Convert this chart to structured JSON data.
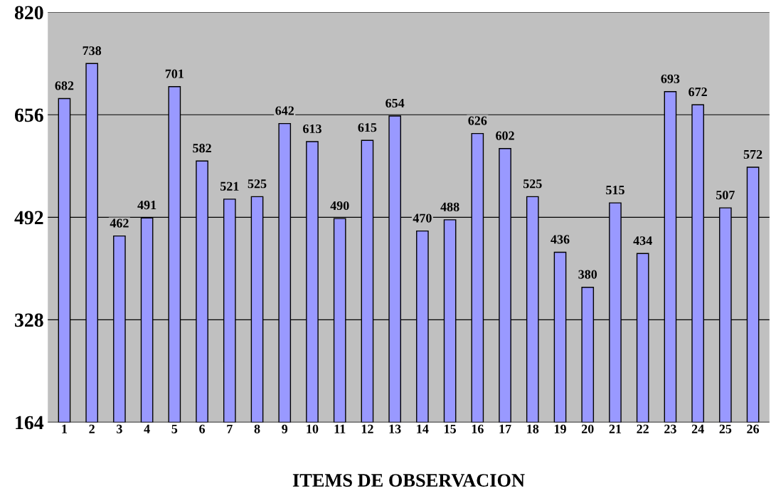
{
  "chart_data": {
    "type": "bar",
    "xlabel": "ITEMS DE OBSERVACION",
    "categories": [
      "1",
      "2",
      "3",
      "4",
      "5",
      "6",
      "7",
      "8",
      "9",
      "10",
      "11",
      "12",
      "13",
      "14",
      "15",
      "16",
      "17",
      "18",
      "19",
      "20",
      "21",
      "22",
      "23",
      "24",
      "25",
      "26"
    ],
    "values": [
      682,
      738,
      462,
      491,
      701,
      582,
      521,
      525,
      642,
      613,
      490,
      615,
      654,
      470,
      488,
      626,
      602,
      525,
      436,
      380,
      515,
      434,
      693,
      672,
      507,
      572
    ],
    "color": "#9999ff",
    "ylim": [
      164,
      820
    ],
    "yticks": [
      164,
      328,
      492,
      656,
      820
    ],
    "grid": "y",
    "data_labels": true,
    "legend": false
  }
}
